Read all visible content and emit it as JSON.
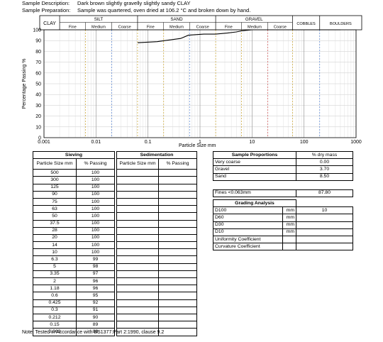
{
  "sample": {
    "description_label": "Sample Description:",
    "description": "Dark brown slightly gravelly slightly sandy CLAY",
    "preparation_label": "Sample Preparation:",
    "preparation": "Sample was quartered, oven dried at 106.2 °C and broken down by hand."
  },
  "chart_data": {
    "type": "line",
    "ylabel": "Percentage Passing  %",
    "xlabel": "Particle Size   mm",
    "x_scale": "log",
    "xlim": [
      0.001,
      1000
    ],
    "ylim": [
      0,
      100
    ],
    "x_ticks": [
      "0.001",
      "0.01",
      "0.1",
      "1",
      "10",
      "100",
      "1000"
    ],
    "y_ticks": [
      "0",
      "10",
      "20",
      "30",
      "40",
      "50",
      "60",
      "70",
      "80",
      "90",
      "100"
    ],
    "grid": true,
    "classification": {
      "clay": "CLAY",
      "silt": "SILT",
      "sand": "SAND",
      "gravel": "GRAVEL",
      "cobbles": "COBBLES",
      "boulders": "BOULDERS",
      "sub": [
        "Fine",
        "Medium",
        "Coarse"
      ]
    },
    "series": [
      {
        "x": [
          0.063,
          0.15,
          0.212,
          0.3,
          0.425,
          0.6,
          1.18,
          2,
          3.35,
          5,
          6.3,
          10,
          14,
          20,
          28,
          37.5,
          50,
          63,
          75,
          90,
          125,
          300,
          500
        ],
        "y": [
          88,
          89,
          90,
          91,
          92,
          95,
          96,
          96,
          97,
          98,
          99,
          100,
          100,
          100,
          100,
          100,
          100,
          100,
          100,
          100,
          100,
          100,
          100
        ]
      }
    ],
    "line_color": "#000000"
  },
  "sieving": {
    "title": "Sieving",
    "col1": "Particle Size mm",
    "col2": "% Passing",
    "rows": [
      [
        "500",
        "100"
      ],
      [
        "300",
        "100"
      ],
      [
        "125",
        "100"
      ],
      [
        "90",
        "100"
      ],
      [
        "75",
        "100"
      ],
      [
        "63",
        "100"
      ],
      [
        "50",
        "100"
      ],
      [
        "37.5",
        "100"
      ],
      [
        "28",
        "100"
      ],
      [
        "20",
        "100"
      ],
      [
        "14",
        "100"
      ],
      [
        "10",
        "100"
      ],
      [
        "6.3",
        "99"
      ],
      [
        "5",
        "98"
      ],
      [
        "3.35",
        "97"
      ],
      [
        "2",
        "96"
      ],
      [
        "1.18",
        "96"
      ],
      [
        "0.6",
        "95"
      ],
      [
        "0.425",
        "92"
      ],
      [
        "0.3",
        "91"
      ],
      [
        "0.212",
        "90"
      ],
      [
        "0.15",
        "89"
      ],
      [
        "0.063",
        "88"
      ]
    ]
  },
  "sedimentation": {
    "title": "Sedimentation",
    "col1": "Particle Size mm",
    "col2": "% Passing"
  },
  "proportions": {
    "title": "Sample Proportions",
    "value_header": "% dry mass",
    "rows": [
      [
        "Very coarse",
        "0.00"
      ],
      [
        "Gravel",
        "3.70"
      ],
      [
        "Sand",
        "8.50"
      ]
    ],
    "fines_label": "Fines <0.063mm",
    "fines_value": "87.80"
  },
  "grading": {
    "title": "Grading Analysis",
    "rows": [
      [
        "D100",
        "mm",
        "10"
      ],
      [
        "D60",
        "mm",
        ""
      ],
      [
        "D30",
        "mm",
        ""
      ],
      [
        "D10",
        "mm",
        ""
      ],
      [
        "Uniformity Coefficient",
        "",
        ""
      ],
      [
        "Curvature Coefficient",
        "",
        ""
      ]
    ]
  },
  "note": "Note: Tested in Accordance with BS1377:Part 2:1990, clause 9.2"
}
